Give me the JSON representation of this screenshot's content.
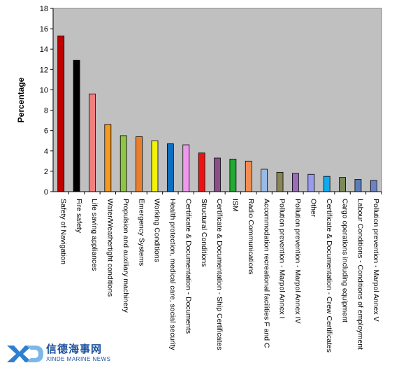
{
  "chart_data": {
    "type": "bar",
    "title": "",
    "xlabel": "",
    "ylabel": "Percentage",
    "ylim": [
      0,
      18
    ],
    "yticks": [
      0,
      2,
      4,
      6,
      8,
      10,
      12,
      14,
      16,
      18
    ],
    "grid": false,
    "plot_background": "#c0c0c0",
    "categories": [
      "Safety of Navigation",
      "Fire safety",
      "Life saving appliances",
      "Water/Weathertight conditions",
      "Propulsion and auxiliary machinery",
      "Emergency Systems",
      "Working Conditions",
      "Health protection, medical care, social security",
      "Certificate & Documentation - Documents",
      "Structural Conditions",
      "Certificate & Documentation - Ship Certificates",
      "ISM",
      "Radio Communications",
      "Accommodation recreational facilities F and C",
      "Pollution prevention - Marpol Annex I",
      "Pollution prevention - Marpol Annex IV",
      "Other",
      "Certificate & Documentation - Crew Certificates",
      "Cargo operations including equipment",
      "Labour Conditions - Conditions of employment",
      "Pollution prevention - Marpol Annex V"
    ],
    "values": [
      15.3,
      12.9,
      9.6,
      6.6,
      5.5,
      5.4,
      5.0,
      4.7,
      4.6,
      3.8,
      3.3,
      3.2,
      3.0,
      2.2,
      1.9,
      1.8,
      1.7,
      1.5,
      1.4,
      1.2,
      1.1
    ],
    "colors": [
      "#c00000",
      "#000000",
      "#f08080",
      "#f59a1e",
      "#8fc447",
      "#e97f2c",
      "#f2f20a",
      "#0f6fbf",
      "#ee99ee",
      "#ee1111",
      "#8a4f8a",
      "#22aa33",
      "#f28c50",
      "#99bbe8",
      "#8a8556",
      "#9a6cba",
      "#9999ee",
      "#11aaee",
      "#7a8a5a",
      "#5a7fb8",
      "#6d82c5"
    ]
  },
  "logo": {
    "chinese_text": "信德海事网",
    "english_text": "XINDE MARINE NEWS"
  }
}
